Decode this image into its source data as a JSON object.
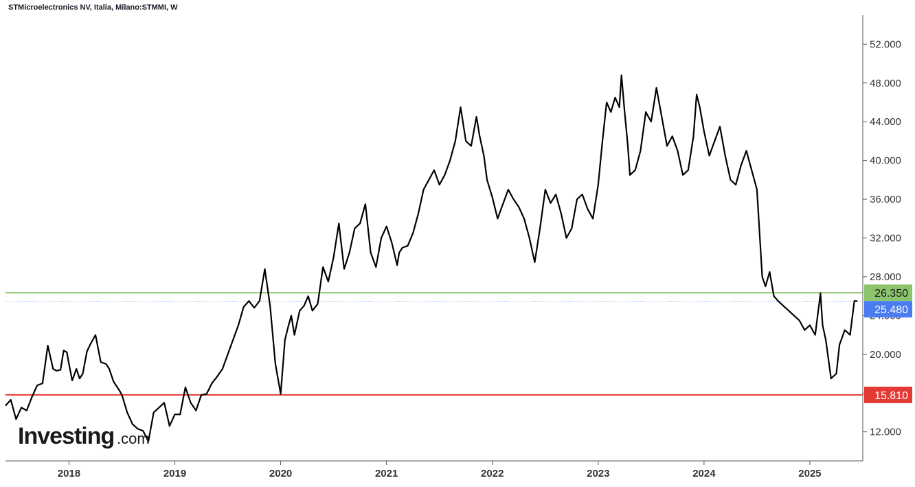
{
  "chart_data": {
    "type": "line",
    "title": "STMicroelectronics NV, Italia, Milano:STMMI, W",
    "watermark": "Investing",
    "watermark_suffix": ".com",
    "ylim": [
      9,
      55
    ],
    "xlim": [
      2017.4,
      2025.5
    ],
    "yticks": [
      12,
      16,
      20,
      24,
      28,
      32,
      36,
      40,
      44,
      48,
      52
    ],
    "ytick_labels": [
      "12.000",
      "16.000",
      "20.000",
      "24.000",
      "28.000",
      "32.000",
      "36.000",
      "40.000",
      "44.000",
      "48.000",
      "52.000"
    ],
    "xticks": [
      2018,
      2019,
      2020,
      2021,
      2022,
      2023,
      2024,
      2025
    ],
    "xtick_labels": [
      "2018",
      "2019",
      "2020",
      "2021",
      "2022",
      "2023",
      "2024",
      "2025"
    ],
    "grid": false,
    "line_color": "#000000",
    "levels": [
      {
        "value": 26.35,
        "label": "26.350",
        "color": "#8cc46e",
        "text_color": "#1a1a1a",
        "style": "solid"
      },
      {
        "value": 25.48,
        "label": "25.480",
        "color": "#4a7cf0",
        "text_color": "#ffffff",
        "style": "dotted"
      },
      {
        "value": 15.81,
        "label": "15.810",
        "color": "#e53935",
        "text_color": "#ffffff",
        "style": "solid"
      }
    ],
    "series": [
      {
        "x": [
          2017.4,
          2017.45,
          2017.5,
          2017.55,
          2017.6,
          2017.65,
          2017.7,
          2017.75,
          2017.8,
          2017.85,
          2017.88,
          2017.92,
          2017.95,
          2017.98,
          2018.0,
          2018.03,
          2018.07,
          2018.1,
          2018.13,
          2018.17,
          2018.2,
          2018.25,
          2018.3,
          2018.35,
          2018.38,
          2018.42,
          2018.45,
          2018.48,
          2018.5,
          2018.55,
          2018.6,
          2018.65,
          2018.7,
          2018.75,
          2018.8,
          2018.85,
          2018.9,
          2018.95,
          2019.0,
          2019.05,
          2019.1,
          2019.15,
          2019.2,
          2019.25,
          2019.3,
          2019.35,
          2019.4,
          2019.45,
          2019.5,
          2019.55,
          2019.6,
          2019.65,
          2019.7,
          2019.75,
          2019.8,
          2019.85,
          2019.9,
          2019.95,
          2020.0,
          2020.04,
          2020.07,
          2020.1,
          2020.13,
          2020.16,
          2020.18,
          2020.22,
          2020.26,
          2020.3,
          2020.35,
          2020.4,
          2020.45,
          2020.5,
          2020.55,
          2020.6,
          2020.65,
          2020.7,
          2020.75,
          2020.8,
          2020.85,
          2020.9,
          2020.95,
          2021.0,
          2021.05,
          2021.1,
          2021.12,
          2021.15,
          2021.2,
          2021.25,
          2021.3,
          2021.35,
          2021.4,
          2021.45,
          2021.5,
          2021.55,
          2021.6,
          2021.65,
          2021.7,
          2021.75,
          2021.8,
          2021.85,
          2021.88,
          2021.92,
          2021.95,
          2022.0,
          2022.05,
          2022.1,
          2022.15,
          2022.2,
          2022.25,
          2022.3,
          2022.35,
          2022.4,
          2022.45,
          2022.5,
          2022.55,
          2022.6,
          2022.65,
          2022.7,
          2022.75,
          2022.8,
          2022.85,
          2022.9,
          2022.95,
          2023.0,
          2023.04,
          2023.08,
          2023.12,
          2023.16,
          2023.2,
          2023.22,
          2023.25,
          2023.28,
          2023.3,
          2023.35,
          2023.4,
          2023.45,
          2023.5,
          2023.55,
          2023.6,
          2023.65,
          2023.7,
          2023.75,
          2023.8,
          2023.85,
          2023.9,
          2023.93,
          2023.96,
          2024.0,
          2024.05,
          2024.1,
          2024.15,
          2024.2,
          2024.25,
          2024.3,
          2024.35,
          2024.4,
          2024.45,
          2024.5,
          2024.55,
          2024.58,
          2024.62,
          2024.66,
          2024.7,
          2024.75,
          2024.8,
          2024.85,
          2024.9,
          2024.95,
          2025.0,
          2025.05,
          2025.1,
          2025.12,
          2025.15,
          2025.2,
          2025.25,
          2025.28,
          2025.33,
          2025.38,
          2025.42,
          2025.45
        ],
        "y": [
          14.7,
          15.3,
          13.3,
          14.5,
          14.2,
          15.6,
          16.8,
          17.0,
          20.9,
          18.5,
          18.3,
          18.4,
          20.4,
          20.2,
          19.0,
          17.3,
          18.5,
          17.5,
          18.0,
          20.3,
          21.0,
          22.0,
          19.2,
          19.0,
          18.5,
          17.2,
          16.7,
          16.2,
          15.8,
          14.0,
          12.8,
          12.3,
          12.1,
          11.0,
          14.0,
          14.5,
          15.0,
          12.6,
          13.8,
          13.8,
          16.6,
          15.0,
          14.2,
          15.8,
          15.9,
          17.0,
          17.7,
          18.5,
          20.0,
          21.5,
          23.0,
          24.9,
          25.5,
          24.8,
          25.5,
          28.8,
          25.0,
          19.0,
          15.9,
          21.5,
          22.8,
          24.0,
          22.0,
          23.5,
          24.5,
          25.0,
          26.0,
          24.5,
          25.2,
          29.0,
          27.5,
          30.0,
          33.5,
          28.8,
          30.5,
          33.0,
          33.5,
          35.5,
          30.5,
          29.0,
          32.0,
          33.2,
          31.5,
          29.2,
          30.5,
          31.0,
          31.2,
          32.5,
          34.5,
          37.0,
          38.0,
          39.0,
          37.5,
          38.5,
          40.0,
          42.0,
          45.5,
          42.0,
          41.5,
          44.5,
          42.5,
          40.5,
          38.0,
          36.2,
          34.0,
          35.5,
          37.0,
          36.0,
          35.2,
          34.0,
          32.0,
          29.5,
          33.0,
          37.0,
          35.6,
          36.5,
          34.5,
          32.0,
          33.0,
          36.0,
          36.5,
          35.0,
          34.0,
          37.5,
          42.0,
          46.0,
          45.0,
          46.5,
          45.5,
          48.8,
          45.0,
          41.5,
          38.5,
          39.0,
          41.0,
          45.0,
          44.0,
          47.5,
          44.5,
          41.5,
          42.5,
          41.0,
          38.5,
          39.0,
          42.5,
          46.8,
          45.5,
          43.0,
          40.5,
          42.0,
          43.5,
          40.5,
          38.0,
          37.5,
          39.5,
          41.0,
          39.0,
          37.0,
          28.0,
          27.0,
          28.5,
          26.0,
          25.5,
          25.0,
          24.5,
          24.0,
          23.5,
          22.5,
          23.0,
          22.0,
          26.3,
          23.0,
          21.5,
          17.5,
          18.0,
          21.0,
          22.5,
          22.0,
          25.5,
          25.48
        ]
      }
    ]
  }
}
